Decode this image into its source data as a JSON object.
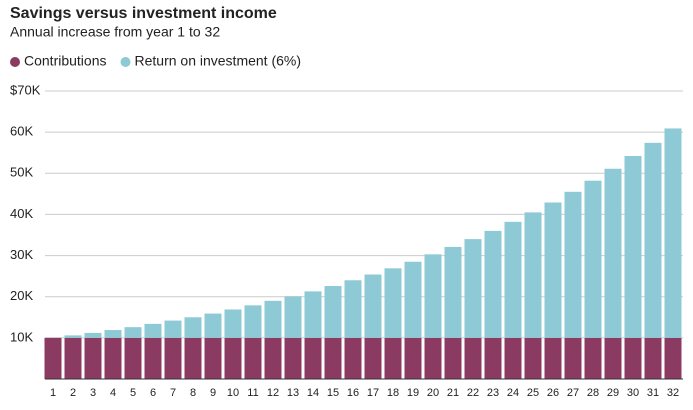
{
  "chart_data": {
    "type": "stacked_bar",
    "title": "Savings versus investment income",
    "subtitle": "Annual increase from year 1 to 32",
    "categories": [
      "1",
      "2",
      "3",
      "4",
      "5",
      "6",
      "7",
      "8",
      "9",
      "10",
      "11",
      "12",
      "13",
      "14",
      "15",
      "16",
      "17",
      "18",
      "19",
      "20",
      "21",
      "22",
      "23",
      "24",
      "25",
      "26",
      "27",
      "28",
      "29",
      "30",
      "31",
      "32"
    ],
    "series": [
      {
        "name": "Contributions",
        "color": "#8b3a62",
        "values": [
          10000,
          10000,
          10000,
          10000,
          10000,
          10000,
          10000,
          10000,
          10000,
          10000,
          10000,
          10000,
          10000,
          10000,
          10000,
          10000,
          10000,
          10000,
          10000,
          10000,
          10000,
          10000,
          10000,
          10000,
          10000,
          10000,
          10000,
          10000,
          10000,
          10000,
          10000,
          10000
        ]
      },
      {
        "name": "Return on investment (6%)",
        "color": "#8ecad6",
        "values": [
          0,
          600,
          1200,
          1900,
          2600,
          3400,
          4200,
          5000,
          5900,
          6900,
          7900,
          9000,
          10100,
          11300,
          12600,
          14000,
          15400,
          16900,
          18500,
          20300,
          22100,
          24000,
          26000,
          28200,
          30500,
          32900,
          35500,
          38200,
          41100,
          44200,
          47400,
          50900
        ]
      }
    ],
    "ylim": [
      0,
      70000
    ],
    "yticks": [
      {
        "value": 10000,
        "label": "10K"
      },
      {
        "value": 20000,
        "label": "20K"
      },
      {
        "value": 30000,
        "label": "30K"
      },
      {
        "value": 40000,
        "label": "40K"
      },
      {
        "value": 50000,
        "label": "50K"
      },
      {
        "value": 60000,
        "label": "60K"
      },
      {
        "value": 70000,
        "label": "$70K"
      }
    ],
    "grid": true
  }
}
